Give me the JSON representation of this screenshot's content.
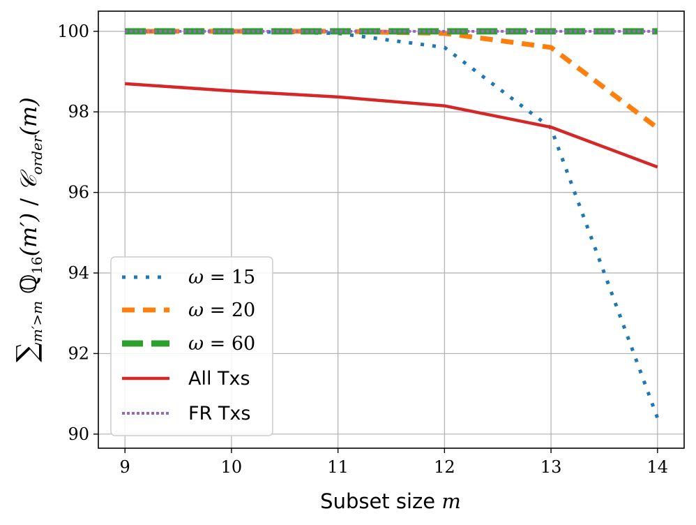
{
  "chart_data": {
    "type": "line",
    "title": "",
    "xlabel_prefix": "Subset size",
    "xlabel_var": "m",
    "ylabel": "∑m′>m ℚ16(m′) / 𝒞order(m)",
    "ylabel_parts": {
      "sum": "∑",
      "sum_sub": "m′>m",
      "q": "ℚ",
      "q_sub": "16",
      "q_arg": "(m′)",
      "sep": " / ",
      "c": "𝒞",
      "c_sub": "order",
      "c_arg": "(m)"
    },
    "x": [
      9,
      10,
      11,
      12,
      13,
      14
    ],
    "xticks": [
      "9",
      "10",
      "11",
      "12",
      "13",
      "14"
    ],
    "yticks": [
      "90",
      "92",
      "94",
      "96",
      "98",
      "100"
    ],
    "xlim": [
      8.75,
      14.25
    ],
    "ylim": [
      89.65,
      100.5
    ],
    "grid": true,
    "legend_position": "lower-left",
    "series": [
      {
        "name": "ω = 15",
        "legend_sym": "ω",
        "legend_eq": "= 15",
        "style": "dotted",
        "color": "#1f77b4",
        "values": [
          100.0,
          100.0,
          99.95,
          99.6,
          97.6,
          90.4
        ]
      },
      {
        "name": "ω = 20",
        "legend_sym": "ω",
        "legend_eq": "= 20",
        "style": "dashed",
        "color": "#ff7f0e",
        "values": [
          100.0,
          100.0,
          100.0,
          99.95,
          99.6,
          97.6
        ]
      },
      {
        "name": "ω = 60",
        "legend_sym": "ω",
        "legend_eq": "= 60",
        "style": "dashed-long",
        "color": "#2ca02c",
        "values": [
          100.0,
          100.0,
          100.0,
          100.0,
          100.0,
          100.0
        ]
      },
      {
        "name": "All Txs",
        "style": "solid",
        "color": "#d62728",
        "values": [
          98.7,
          98.52,
          98.37,
          98.15,
          97.62,
          96.63
        ]
      },
      {
        "name": "FR Txs",
        "style": "dotted-fine",
        "color": "#9467bd",
        "values": [
          100.0,
          100.0,
          100.0,
          100.0,
          100.0,
          100.0
        ]
      }
    ]
  }
}
